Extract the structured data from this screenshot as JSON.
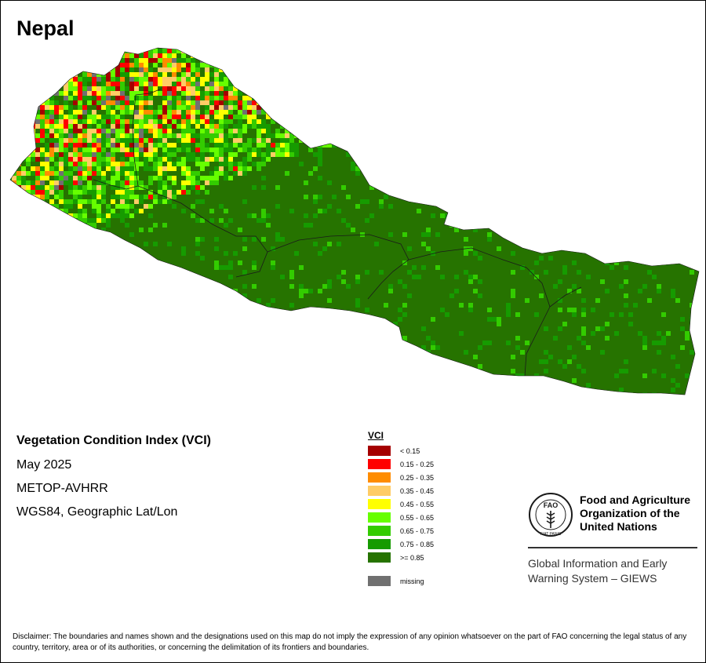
{
  "map": {
    "title": "Nepal",
    "region": "Nepal"
  },
  "info": {
    "title": "Vegetation Condition Index (VCI)",
    "date": "May 2025",
    "sensor": "METOP-AVHRR",
    "projection": "WGS84, Geographic Lat/Lon"
  },
  "legend": {
    "title": "VCI",
    "items": [
      {
        "label": "< 0.15",
        "color": "#a50000"
      },
      {
        "label": "0.15 - 0.25",
        "color": "#ff0000"
      },
      {
        "label": "0.25 - 0.35",
        "color": "#ff8c00"
      },
      {
        "label": "0.35 - 0.45",
        "color": "#ffcc66"
      },
      {
        "label": "0.45 - 0.55",
        "color": "#ffff00"
      },
      {
        "label": "0.55 - 0.65",
        "color": "#66ff00"
      },
      {
        "label": "0.65 - 0.75",
        "color": "#33cc00"
      },
      {
        "label": "0.75 - 0.85",
        "color": "#169b00"
      },
      {
        "label": ">= 0.85",
        "color": "#267300"
      }
    ],
    "missing": {
      "label": "missing",
      "color": "#707070"
    }
  },
  "logo": {
    "emblem_text": "FAO",
    "emblem_motto": "FIAT PANIS",
    "org_name": "Food and Agriculture\nOrganization of the\nUnited Nations",
    "program_name": "Global Information and Early\nWarning System – GIEWS"
  },
  "disclaimer": "Disclaimer: The boundaries and names shown and the designations used on this map do not imply the expression of any opinion whatsoever on the part of FAO concerning the legal status of any country, territory, area or of its authorities, or concerning the delimitation of its frontiers and boundaries."
}
